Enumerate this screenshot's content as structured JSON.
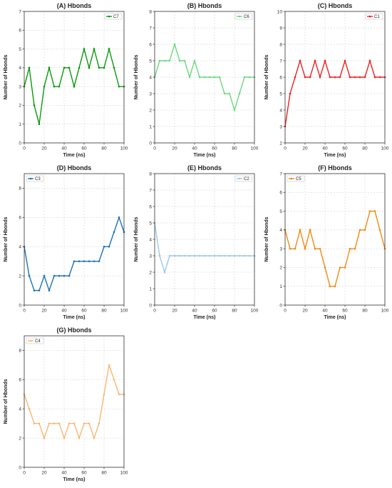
{
  "chart_data": [
    {
      "id": "A",
      "type": "line",
      "title": "(A) Hbonds",
      "xlabel": "Time (ns)",
      "ylabel": "Number of Hbonds",
      "series": [
        {
          "name": "C7",
          "color": "#0a9a0a"
        }
      ],
      "xlim": [
        0,
        100
      ],
      "ylim": [
        0,
        7
      ],
      "xticks": [
        0,
        20,
        40,
        60,
        80,
        100
      ],
      "yticks": [
        0,
        1,
        2,
        3,
        4,
        5,
        6,
        7
      ],
      "legend": "top-right",
      "grid": true,
      "x": [
        0,
        5,
        10,
        15,
        20,
        25,
        30,
        35,
        40,
        45,
        50,
        55,
        60,
        65,
        70,
        75,
        80,
        85,
        90,
        95,
        100
      ],
      "y": [
        3,
        4,
        2,
        1,
        3,
        4,
        3,
        3,
        4,
        4,
        3,
        4,
        5,
        4,
        5,
        4,
        4,
        5,
        4,
        3,
        3
      ]
    },
    {
      "id": "B",
      "type": "line",
      "title": "(B) Hbonds",
      "xlabel": "Time (ns)",
      "ylabel": "Number of Hbonds",
      "series": [
        {
          "name": "C6",
          "color": "#6cd97e"
        }
      ],
      "xlim": [
        0,
        100
      ],
      "ylim": [
        0,
        8
      ],
      "xticks": [
        0,
        20,
        40,
        60,
        80,
        100
      ],
      "yticks": [
        0,
        1,
        2,
        3,
        4,
        5,
        6,
        7,
        8
      ],
      "legend": "top-right",
      "grid": true,
      "x": [
        0,
        5,
        10,
        15,
        20,
        25,
        30,
        35,
        40,
        45,
        50,
        55,
        60,
        65,
        70,
        75,
        80,
        85,
        90,
        95,
        100
      ],
      "y": [
        4,
        5,
        5,
        5,
        6,
        5,
        5,
        4,
        5,
        4,
        4,
        4,
        4,
        4,
        3,
        3,
        2,
        3,
        4,
        4,
        4
      ]
    },
    {
      "id": "C",
      "type": "line",
      "title": "(C) Hbonds",
      "xlabel": "Time (ns)",
      "ylabel": "Number of Hbonds",
      "series": [
        {
          "name": "C1",
          "color": "#ee2222"
        }
      ],
      "xlim": [
        0,
        100
      ],
      "ylim": [
        2,
        10
      ],
      "xticks": [
        0,
        20,
        40,
        60,
        80,
        100
      ],
      "yticks": [
        2,
        3,
        4,
        5,
        6,
        7,
        8,
        9,
        10
      ],
      "legend": "top-right",
      "grid": true,
      "x": [
        0,
        5,
        10,
        15,
        20,
        25,
        30,
        35,
        40,
        45,
        50,
        55,
        60,
        65,
        70,
        75,
        80,
        85,
        90,
        95,
        100
      ],
      "y": [
        3,
        5,
        6,
        7,
        6,
        6,
        7,
        6,
        7,
        6,
        6,
        6,
        7,
        6,
        6,
        6,
        6,
        7,
        6,
        6,
        6
      ]
    },
    {
      "id": "D",
      "type": "line",
      "title": "(D) Hbonds",
      "xlabel": "Time (ns)",
      "ylabel": "Number of Hbonds",
      "series": [
        {
          "name": "C3",
          "color": "#1a72b8"
        }
      ],
      "xlim": [
        0,
        100
      ],
      "ylim": [
        0,
        9
      ],
      "xticks": [
        0,
        20,
        40,
        60,
        80,
        100
      ],
      "yticks": [
        0,
        2,
        4,
        6,
        8
      ],
      "legend": "top-left",
      "grid": true,
      "x": [
        0,
        5,
        10,
        15,
        20,
        25,
        30,
        35,
        40,
        45,
        50,
        55,
        60,
        65,
        70,
        75,
        80,
        85,
        90,
        95,
        100
      ],
      "y": [
        4,
        2,
        1,
        1,
        2,
        1,
        2,
        2,
        2,
        2,
        3,
        3,
        3,
        3,
        3,
        3,
        4,
        4,
        5,
        6,
        5
      ]
    },
    {
      "id": "E",
      "type": "line",
      "title": "(E) Hbonds",
      "xlabel": "Time (ns)",
      "ylabel": "Number of Hbonds",
      "series": [
        {
          "name": "C2",
          "color": "#9ec8ea"
        }
      ],
      "xlim": [
        0,
        100
      ],
      "ylim": [
        0,
        8
      ],
      "xticks": [
        0,
        20,
        40,
        60,
        80,
        100
      ],
      "yticks": [
        0,
        1,
        2,
        3,
        4,
        5,
        6,
        7,
        8
      ],
      "legend": "top-right",
      "grid": true,
      "x": [
        0,
        5,
        10,
        15,
        20,
        25,
        30,
        35,
        40,
        45,
        50,
        55,
        60,
        65,
        70,
        75,
        80,
        85,
        90,
        95,
        100
      ],
      "y": [
        5,
        3,
        2,
        3,
        3,
        3,
        3,
        3,
        3,
        3,
        3,
        3,
        3,
        3,
        3,
        3,
        3,
        3,
        3,
        3,
        3
      ]
    },
    {
      "id": "F",
      "type": "line",
      "title": "(F) Hbonds",
      "xlabel": "Time (ns)",
      "ylabel": "Number of Hbonds",
      "series": [
        {
          "name": "C5",
          "color": "#f28a10"
        }
      ],
      "xlim": [
        0,
        100
      ],
      "ylim": [
        0,
        7
      ],
      "xticks": [
        0,
        20,
        40,
        60,
        80,
        100
      ],
      "yticks": [
        0,
        1,
        2,
        3,
        4,
        5,
        6,
        7
      ],
      "legend": "top-left",
      "grid": true,
      "x": [
        0,
        5,
        10,
        15,
        20,
        25,
        30,
        35,
        40,
        45,
        50,
        55,
        60,
        65,
        70,
        75,
        80,
        85,
        90,
        95,
        100
      ],
      "y": [
        4,
        3,
        3,
        4,
        3,
        4,
        3,
        3,
        2,
        1,
        1,
        2,
        2,
        3,
        3,
        4,
        4,
        5,
        5,
        4,
        3
      ]
    },
    {
      "id": "G",
      "type": "line",
      "title": "(G) Hbonds",
      "xlabel": "Time (ns)",
      "ylabel": "Number of Hbonds",
      "series": [
        {
          "name": "C4",
          "color": "#f7b870"
        }
      ],
      "xlim": [
        0,
        100
      ],
      "ylim": [
        0,
        9
      ],
      "xticks": [
        0,
        20,
        40,
        60,
        80,
        100
      ],
      "yticks": [
        0,
        2,
        4,
        6,
        8
      ],
      "legend": "top-left",
      "grid": true,
      "x": [
        0,
        5,
        10,
        15,
        20,
        25,
        30,
        35,
        40,
        45,
        50,
        55,
        60,
        65,
        70,
        75,
        80,
        85,
        90,
        95,
        100
      ],
      "y": [
        5,
        4,
        3,
        3,
        2,
        3,
        3,
        3,
        2,
        3,
        3,
        2,
        3,
        3,
        2,
        3,
        5,
        7,
        6,
        5,
        5
      ]
    }
  ]
}
